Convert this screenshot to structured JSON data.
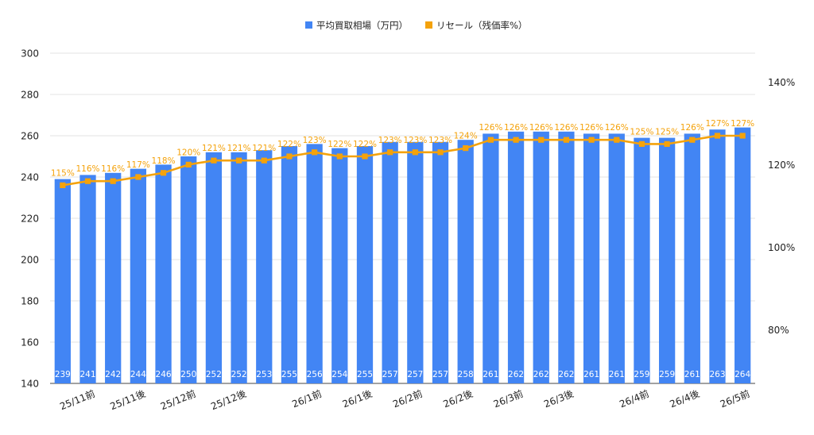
{
  "colors": {
    "bar": "#4285f4",
    "line": "#f4a20b",
    "grid": "#e3e3e3",
    "axis_text": "#222222",
    "bar_label": "#ffffff",
    "line_label": "#f4a20b"
  },
  "legend": {
    "position": "top-center",
    "items": [
      {
        "name": "平均買取相場（万円）",
        "color": "#4285f4",
        "shape": "square"
      },
      {
        "name": "リセール（残価率%）",
        "color": "#f4a20b",
        "shape": "square"
      }
    ]
  },
  "chart_data": {
    "type": "bar+line",
    "title": "",
    "x": [
      "25/11前",
      "25/11前",
      "25/11前",
      "25/11後",
      "25/11後",
      "25/12前",
      "25/12前",
      "25/12後",
      "25/12後",
      "25/12後",
      "26/1前",
      "26/1前",
      "26/1後",
      "26/1後",
      "26/2前",
      "26/2前",
      "26/2後",
      "26/2後",
      "26/3前",
      "26/3前",
      "26/3後",
      "26/3後",
      "26/3後",
      "26/4前",
      "26/4前",
      "26/4後",
      "26/4後",
      "26/5前"
    ],
    "tick_labels": [
      {
        "label": "25/11前",
        "index": 1
      },
      {
        "label": "25/11後",
        "index": 3
      },
      {
        "label": "25/12前",
        "index": 5
      },
      {
        "label": "25/12後",
        "index": 7
      },
      {
        "label": "26/1前",
        "index": 10
      },
      {
        "label": "26/1後",
        "index": 12
      },
      {
        "label": "26/2前",
        "index": 14
      },
      {
        "label": "26/2後",
        "index": 16
      },
      {
        "label": "26/3前",
        "index": 18
      },
      {
        "label": "26/3後",
        "index": 20
      },
      {
        "label": "26/4前",
        "index": 23
      },
      {
        "label": "26/4後",
        "index": 25
      },
      {
        "label": "26/5前",
        "index": 27
      }
    ],
    "series": [
      {
        "name": "平均買取相場（万円）",
        "type": "bar",
        "axis": "left",
        "values": [
          239,
          241,
          242,
          244,
          246,
          250,
          252,
          252,
          253,
          255,
          256,
          254,
          255,
          257,
          257,
          257,
          258,
          261,
          262,
          262,
          262,
          261,
          261,
          259,
          259,
          261,
          263,
          264
        ],
        "labels": [
          "239",
          "241",
          "242",
          "244",
          "246",
          "250",
          "252",
          "252",
          "253",
          "255",
          "256",
          "254",
          "255",
          "257",
          "257",
          "257",
          "258",
          "261",
          "262",
          "262",
          "262",
          "261",
          "261",
          "259",
          "259",
          "261",
          "263",
          "264"
        ]
      },
      {
        "name": "リセール（残価率%）",
        "type": "line",
        "axis": "right",
        "values": [
          115,
          116,
          116,
          117,
          118,
          120,
          121,
          121,
          121,
          122,
          123,
          122,
          122,
          123,
          123,
          123,
          124,
          126,
          126,
          126,
          126,
          126,
          126,
          125,
          125,
          126,
          127,
          127
        ],
        "labels": [
          "115%",
          "116%",
          "116%",
          "117%",
          "118%",
          "120%",
          "121%",
          "121%",
          "121%",
          "122%",
          "123%",
          "122%",
          "122%",
          "123%",
          "123%",
          "123%",
          "124%",
          "126%",
          "126%",
          "126%",
          "126%",
          "126%",
          "126%",
          "125%",
          "125%",
          "126%",
          "127%",
          "127%"
        ]
      }
    ],
    "y_left": {
      "min": 140,
      "max": 300,
      "step": 20,
      "ticks": [
        "140",
        "160",
        "180",
        "200",
        "220",
        "240",
        "260",
        "280",
        "300"
      ]
    },
    "y_right": {
      "min": 67,
      "max": 147,
      "ticks": [
        {
          "value": 80,
          "label": "80%"
        },
        {
          "value": 100,
          "label": "100%"
        },
        {
          "value": 120,
          "label": "120%"
        },
        {
          "value": 140,
          "label": "140%"
        }
      ]
    },
    "grid": true
  }
}
